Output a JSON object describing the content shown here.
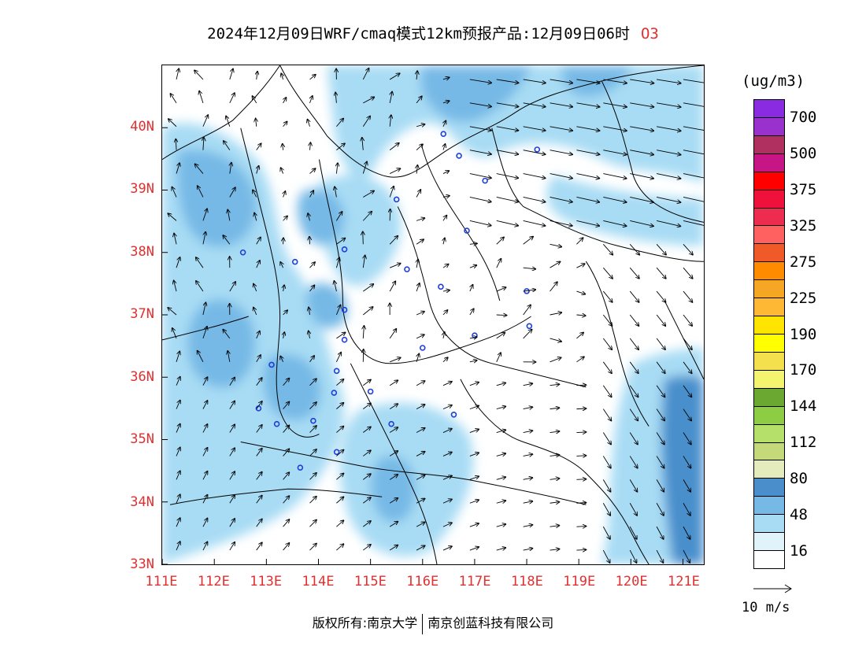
{
  "title": {
    "text": "2024年12月09日WRF/cmaq模式12km预报产品:12月09日06时",
    "species": "O3"
  },
  "map": {
    "lat_labels": [
      "40N",
      "39N",
      "38N",
      "37N",
      "36N",
      "35N",
      "34N",
      "33N"
    ],
    "lon_labels": [
      "111E",
      "112E",
      "113E",
      "114E",
      "115E",
      "116E",
      "117E",
      "118E",
      "119E",
      "120E",
      "121E"
    ],
    "lat_range": [
      33,
      41
    ],
    "lon_range": [
      111,
      121.4
    ],
    "field_colors": [
      "#ffffff",
      "#e0f3fb",
      "#a8dcf4",
      "#76b9e6",
      "#4a8fcc"
    ],
    "station_color": "#1f3fd8",
    "stations": [
      {
        "lon": 116.4,
        "lat": 39.9
      },
      {
        "lon": 116.7,
        "lat": 39.55
      },
      {
        "lon": 118.2,
        "lat": 39.65
      },
      {
        "lon": 117.2,
        "lat": 39.15
      },
      {
        "lon": 115.5,
        "lat": 38.85
      },
      {
        "lon": 116.85,
        "lat": 38.35
      },
      {
        "lon": 112.55,
        "lat": 38.0
      },
      {
        "lon": 113.55,
        "lat": 37.85
      },
      {
        "lon": 114.5,
        "lat": 38.05
      },
      {
        "lon": 115.7,
        "lat": 37.73
      },
      {
        "lon": 116.35,
        "lat": 37.45
      },
      {
        "lon": 118.0,
        "lat": 37.38
      },
      {
        "lon": 114.5,
        "lat": 37.08
      },
      {
        "lon": 118.05,
        "lat": 36.82
      },
      {
        "lon": 117.0,
        "lat": 36.67
      },
      {
        "lon": 114.5,
        "lat": 36.6
      },
      {
        "lon": 116.0,
        "lat": 36.47
      },
      {
        "lon": 113.1,
        "lat": 36.2
      },
      {
        "lon": 114.35,
        "lat": 36.1
      },
      {
        "lon": 115.0,
        "lat": 35.77
      },
      {
        "lon": 114.3,
        "lat": 35.75
      },
      {
        "lon": 112.85,
        "lat": 35.5
      },
      {
        "lon": 116.6,
        "lat": 35.4
      },
      {
        "lon": 113.9,
        "lat": 35.3
      },
      {
        "lon": 113.2,
        "lat": 35.25
      },
      {
        "lon": 115.4,
        "lat": 35.25
      },
      {
        "lon": 114.35,
        "lat": 34.8
      },
      {
        "lon": 113.65,
        "lat": 34.55
      }
    ]
  },
  "colorbar": {
    "unit": "(ug/m3)",
    "colors": [
      "#8a2be2",
      "#9932cc",
      "#b03060",
      "#c71585",
      "#ff0000",
      "#f0103c",
      "#ee2c50",
      "#ff6060",
      "#f05a28",
      "#ff8c00",
      "#f5a623",
      "#ffb833",
      "#ffe400",
      "#ffff00",
      "#f4e04d",
      "#f4f46e",
      "#6aa832",
      "#8ccd44",
      "#b5e16a",
      "#c4d97a",
      "#e4ecbd",
      "#4a8fcc",
      "#76b9e6",
      "#a8dcf4",
      "#e0f3fb",
      "#ffffff"
    ],
    "labels": [
      "700",
      "500",
      "375",
      "325",
      "275",
      "225",
      "190",
      "170",
      "144",
      "112",
      "80",
      "48",
      "16"
    ]
  },
  "reference_vector": {
    "label": "10 m/s"
  },
  "copyright": {
    "prefix": "版权所有:南京大学",
    "org": "南京创蓝科技有限公司"
  }
}
